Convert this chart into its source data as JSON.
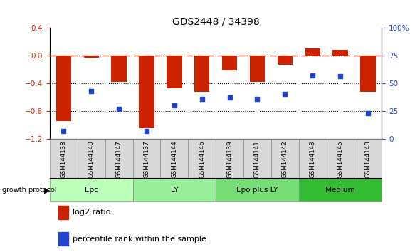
{
  "title": "GDS2448 / 34398",
  "samples": [
    "GSM144138",
    "GSM144140",
    "GSM144147",
    "GSM144137",
    "GSM144144",
    "GSM144146",
    "GSM144139",
    "GSM144141",
    "GSM144142",
    "GSM144143",
    "GSM144145",
    "GSM144148"
  ],
  "log2_ratio": [
    -0.95,
    -0.03,
    -0.38,
    -1.05,
    -0.47,
    -0.52,
    -0.22,
    -0.38,
    -0.13,
    0.1,
    0.08,
    -0.52
  ],
  "percentile_rank": [
    7,
    43,
    27,
    7,
    30,
    36,
    37,
    36,
    40,
    57,
    56,
    23
  ],
  "groups": [
    {
      "label": "Epo",
      "start": 0,
      "end": 3,
      "color": "#bbffbb"
    },
    {
      "label": "LY",
      "start": 3,
      "end": 6,
      "color": "#99ee99"
    },
    {
      "label": "Epo plus LY",
      "start": 6,
      "end": 9,
      "color": "#77dd77"
    },
    {
      "label": "Medium",
      "start": 9,
      "end": 12,
      "color": "#33bb33"
    }
  ],
  "bar_color": "#cc2200",
  "dot_color": "#2244cc",
  "ylim_left": [
    -1.2,
    0.4
  ],
  "ylim_right": [
    0,
    100
  ],
  "yticks_left": [
    -1.2,
    -0.8,
    -0.4,
    0.0,
    0.4
  ],
  "yticks_right": [
    0,
    25,
    50,
    75,
    100
  ],
  "hline_y": 0.0,
  "dotted_lines": [
    -0.4,
    -0.8
  ],
  "bar_width": 0.55
}
